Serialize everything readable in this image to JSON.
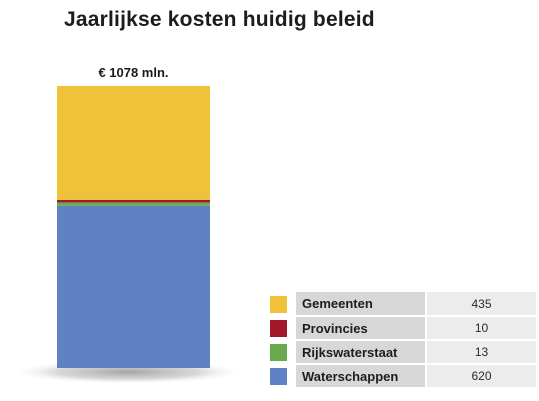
{
  "chart_data": {
    "type": "bar",
    "title": "Jaarlijkse kosten huidig beleid",
    "total_label": "€ 1078 mln.",
    "stacked": true,
    "categories": [
      ""
    ],
    "series": [
      {
        "name": "Gemeenten",
        "values": [
          435
        ],
        "color": "#f0c23a"
      },
      {
        "name": "Provincies",
        "values": [
          10
        ],
        "color": "#a0182a"
      },
      {
        "name": "Rijkswaterstaat",
        "values": [
          13
        ],
        "color": "#6aaa4c"
      },
      {
        "name": "Waterschappen",
        "values": [
          620
        ],
        "color": "#5e82c4"
      }
    ],
    "legend_order": [
      "Gemeenten",
      "Provincies",
      "Rijkswaterstaat",
      "Waterschappen"
    ],
    "stack_order_bottom_to_top": [
      "Waterschappen",
      "Rijkswaterstaat",
      "Provincies",
      "Gemeenten"
    ],
    "ylim": [
      0,
      1078
    ],
    "grid": false,
    "legend_position": "bottom-right"
  }
}
